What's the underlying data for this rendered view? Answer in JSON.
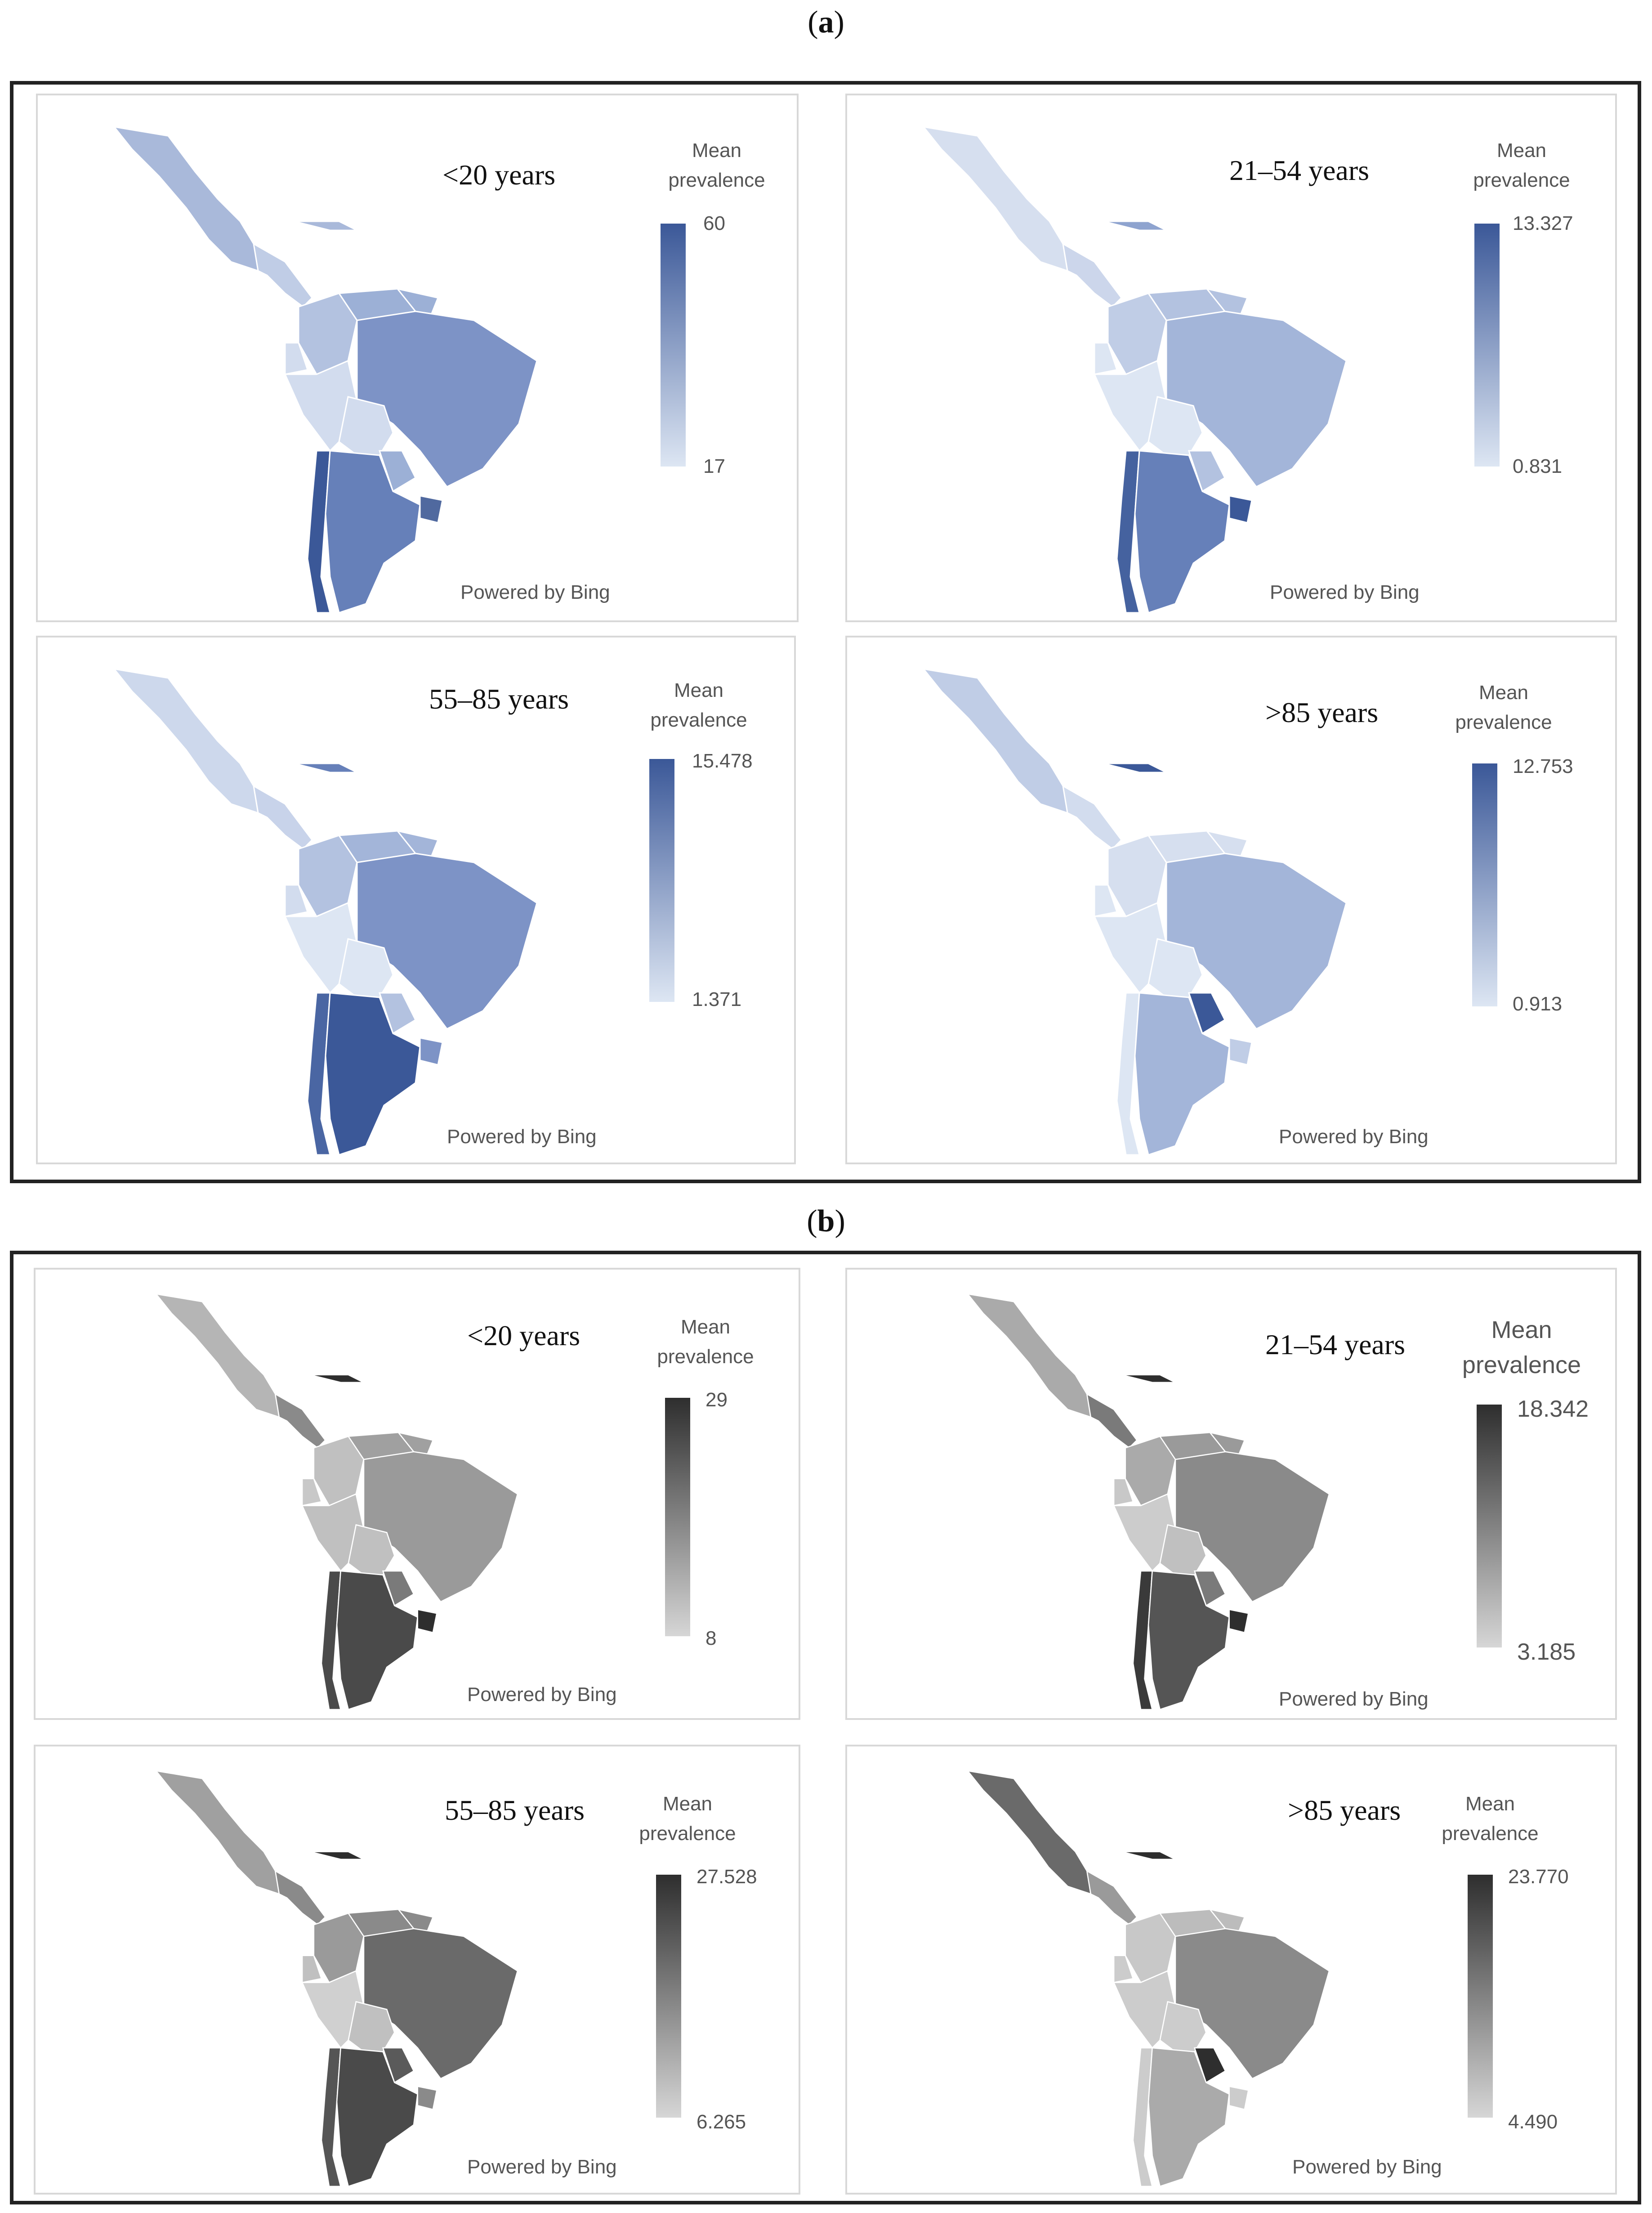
{
  "sections": [
    {
      "label": "a",
      "panels": [
        {
          "age": "<20 years",
          "legend_title_1": "Mean",
          "legend_title_2": "prevalence",
          "max": "60",
          "min": "17",
          "powered": "Powered by Bing"
        },
        {
          "age": "21–54 years",
          "legend_title_1": "Mean",
          "legend_title_2": "prevalence",
          "max": "13.327",
          "min": "0.831",
          "powered": "Powered by Bing"
        },
        {
          "age": "55–85 years",
          "legend_title_1": "Mean",
          "legend_title_2": "prevalence",
          "max": "15.478",
          "min": "1.371",
          "powered": "Powered by Bing"
        },
        {
          "age": ">85 years",
          "legend_title_1": "Mean",
          "legend_title_2": "prevalence",
          "max": "12.753",
          "min": "0.913",
          "powered": "Powered by Bing"
        }
      ]
    },
    {
      "label": "b",
      "panels": [
        {
          "age": "<20 years",
          "legend_title_1": "Mean",
          "legend_title_2": "prevalence",
          "max": "29",
          "min": "8",
          "powered": "Powered by Bing"
        },
        {
          "age": "21–54 years",
          "legend_title_1": "Mean",
          "legend_title_2": "prevalence",
          "max": "18.342",
          "min": "3.185",
          "powered": "Powered by Bing"
        },
        {
          "age": "55–85 years",
          "legend_title_1": "Mean",
          "legend_title_2": "prevalence",
          "max": "27.528",
          "min": "6.265",
          "powered": "Powered by Bing"
        },
        {
          "age": ">85 years",
          "legend_title_1": "Mean",
          "legend_title_2": "prevalence",
          "max": "23.770",
          "min": "4.490",
          "powered": "Powered by Bing"
        }
      ]
    }
  ],
  "colors": {
    "blue_high": "#3b5898",
    "blue_low": "#dde6f3",
    "gray_high": "#2e2e2e",
    "gray_low": "#d6d6d6"
  }
}
